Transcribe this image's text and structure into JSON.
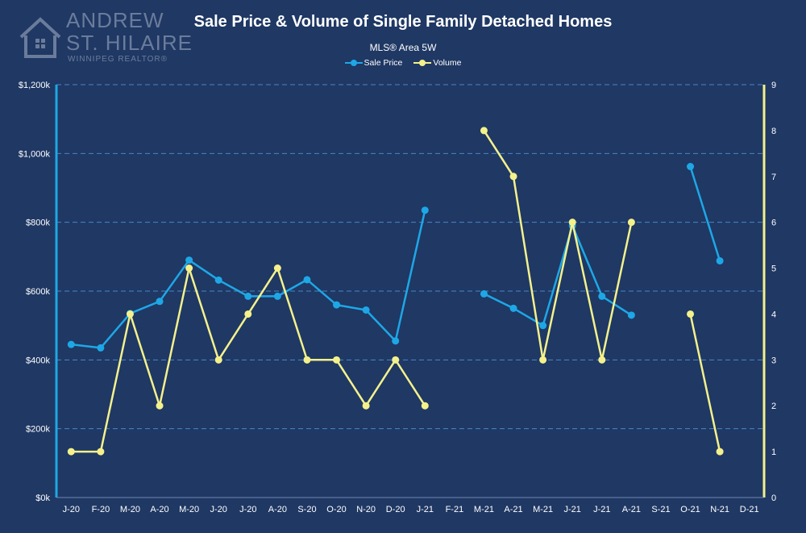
{
  "logo": {
    "name_line1": "ANDREW",
    "name_line2": "ST. HILAIRE",
    "tagline": "WINNIPEG REALTOR®"
  },
  "colors": {
    "background": "#1f3864",
    "sale_price": "#1ea7e6",
    "volume": "#f4f18c",
    "gridline": "#4a86c5"
  },
  "chart_data": {
    "type": "line",
    "title": "Sale Price & Volume of Single Family Detached Homes",
    "subtitle": "MLS® Area 5W",
    "legend_placement": "top",
    "categories": [
      "J-20",
      "F-20",
      "M-20",
      "A-20",
      "M-20",
      "J-20",
      "J-20",
      "A-20",
      "S-20",
      "O-20",
      "N-20",
      "D-20",
      "J-21",
      "F-21",
      "M-21",
      "A-21",
      "M-21",
      "J-21",
      "J-21",
      "A-21",
      "S-21",
      "O-21",
      "N-21",
      "D-21"
    ],
    "y_left": {
      "ylim": [
        0,
        1200000
      ],
      "ticks": [
        0,
        200000,
        400000,
        600000,
        800000,
        1000000,
        1200000
      ],
      "tick_labels": [
        "$0k",
        "$200k",
        "$400k",
        "$600k",
        "$800k",
        "$1,000k",
        "$1,200k"
      ]
    },
    "y_right": {
      "ylim": [
        0,
        9
      ],
      "ticks": [
        0,
        1,
        2,
        3,
        4,
        5,
        6,
        7,
        8,
        9
      ],
      "tick_labels": [
        "0",
        "1",
        "2",
        "3",
        "4",
        "5",
        "6",
        "7",
        "8",
        "9"
      ]
    },
    "grid": true,
    "series": [
      {
        "name": "Sale Price",
        "axis": "left",
        "values": [
          445000,
          435000,
          535000,
          570000,
          690000,
          632000,
          585000,
          585000,
          633000,
          560000,
          545000,
          455000,
          835000,
          null,
          592000,
          550000,
          500000,
          790000,
          585000,
          530000,
          null,
          962000,
          688000,
          null
        ]
      },
      {
        "name": "Volume",
        "axis": "right",
        "values": [
          1,
          1,
          4,
          2,
          5,
          3,
          4,
          5,
          3,
          3,
          2,
          3,
          2,
          null,
          8,
          7,
          3,
          6,
          3,
          6,
          null,
          4,
          1,
          null
        ]
      }
    ]
  }
}
